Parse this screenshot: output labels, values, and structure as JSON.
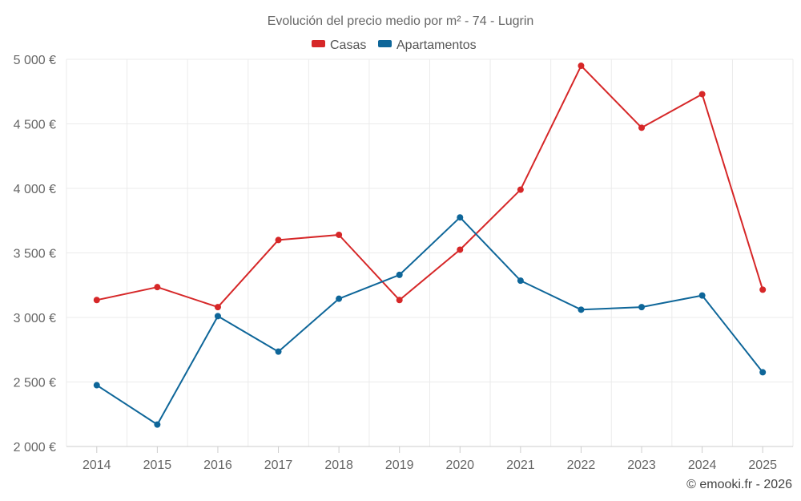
{
  "chart_data": {
    "type": "line",
    "title": "Evolución del precio medio por m² - 74 - Lugrin",
    "categories": [
      "2014",
      "2015",
      "2016",
      "2017",
      "2018",
      "2019",
      "2020",
      "2021",
      "2022",
      "2023",
      "2024",
      "2025"
    ],
    "series": [
      {
        "name": "Casas",
        "color": "#d62728",
        "values": [
          3135,
          3235,
          3080,
          3600,
          3640,
          3135,
          3525,
          3990,
          4950,
          4470,
          4730,
          3215
        ]
      },
      {
        "name": "Apartamentos",
        "color": "#0e6699",
        "values": [
          2475,
          2170,
          3010,
          2735,
          3145,
          3330,
          3775,
          3285,
          3060,
          3080,
          3170,
          2575
        ]
      }
    ],
    "y_ticks": [
      2000,
      2500,
      3000,
      3500,
      4000,
      4500,
      5000
    ],
    "y_tick_labels": [
      "2 000 €",
      "2 500 €",
      "3 000 €",
      "3 500 €",
      "4 000 €",
      "4 500 €",
      "5 000 €"
    ],
    "ylim": [
      2000,
      5000
    ],
    "xlabel": "",
    "ylabel": "",
    "grid": true,
    "legend_position": "top-center"
  },
  "credit": "© emooki.fr - 2026"
}
